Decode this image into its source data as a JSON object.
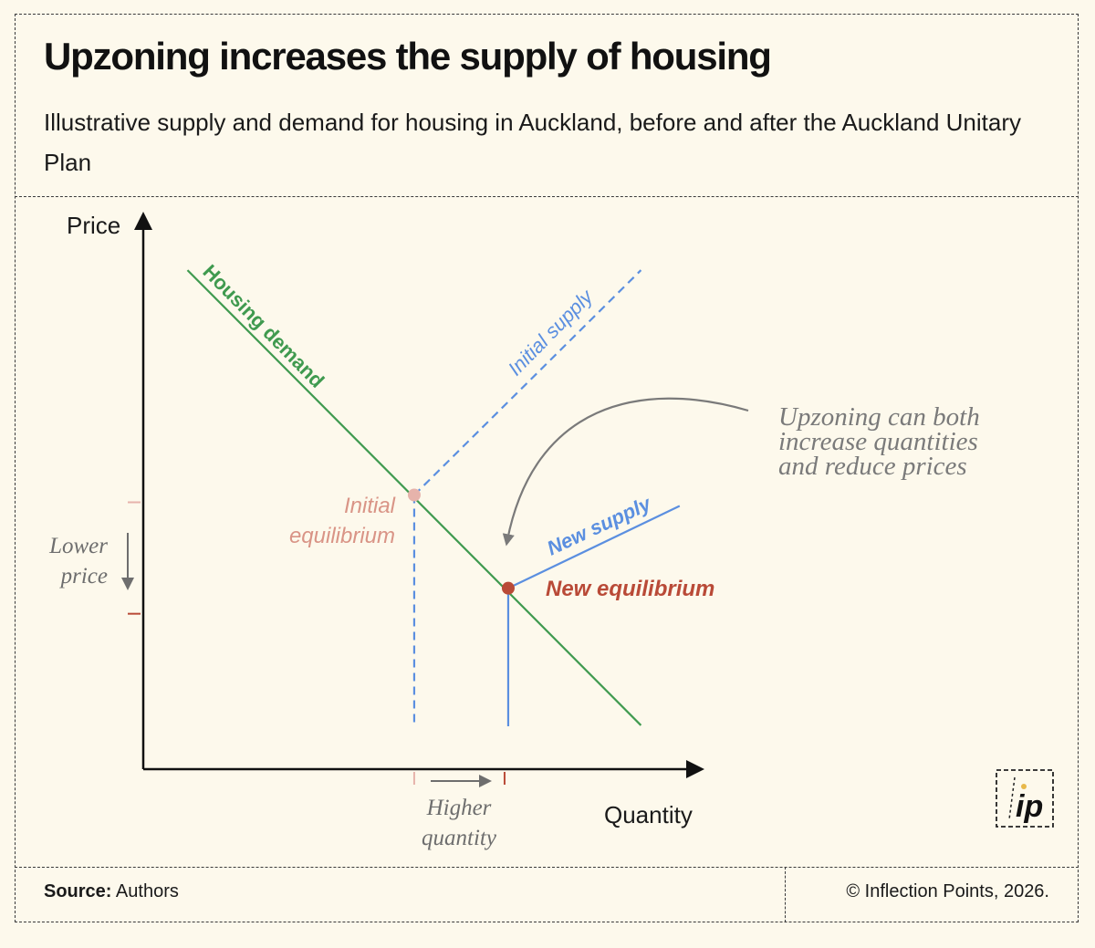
{
  "header": {
    "title": "Upzoning increases the supply of housing",
    "subtitle": "Illustrative supply and demand for housing in Auckland, before and after the Auckland Unitary Plan"
  },
  "footer": {
    "source_label": "Source:",
    "source_value": "Authors",
    "copyright": "© Inflection Points, 2026."
  },
  "logo": {
    "text": "ip"
  },
  "chart_data": {
    "type": "line",
    "title": "Upzoning increases the supply of housing",
    "subtitle": "Illustrative supply and demand for housing in Auckland, before and after the Auckland Unitary Plan",
    "xlabel": "Quantity",
    "ylabel": "Price",
    "xlim": [
      0,
      100
    ],
    "ylim": [
      0,
      100
    ],
    "grid": false,
    "legend": "none",
    "series": [
      {
        "name": "Housing demand",
        "color": "#3f9a4f",
        "style": "solid",
        "x": [
          8,
          90
        ],
        "y": [
          91,
          8
        ]
      },
      {
        "name": "Initial supply",
        "color": "#5b8fe0",
        "style": "dashed",
        "x": [
          49,
          90
        ],
        "y": [
          50,
          91
        ]
      },
      {
        "name": "New supply",
        "color": "#5b8fe0",
        "style": "solid",
        "x": [
          66,
          97
        ],
        "y": [
          33,
          48
        ]
      }
    ],
    "points": [
      {
        "label": "Initial equilibrium",
        "x": 49,
        "y": 50,
        "color": "#e6b3ab"
      },
      {
        "label": "New equilibrium",
        "x": 66,
        "y": 33,
        "color": "#b94a37"
      }
    ],
    "annotations": {
      "initial_equilibrium_line1": "Initial",
      "initial_equilibrium_line2": "equilibrium",
      "new_equilibrium": "New equilibrium",
      "lower_price_line1": "Lower",
      "lower_price_line2": "price",
      "higher_quantity_line1": "Higher",
      "higher_quantity_line2": "quantity",
      "callout_line1": "Upzoning can both",
      "callout_line2": "increase quantities",
      "callout_line3": "and reduce prices"
    },
    "colors": {
      "demand": "#3f9a4f",
      "supply": "#5b8fe0",
      "initial_equilibrium": "#e6b3ab",
      "initial_equilibrium_text": "#d99486",
      "new_equilibrium": "#b94a37",
      "annotation_gray": "#7a7a7a",
      "axis": "#111111"
    }
  }
}
